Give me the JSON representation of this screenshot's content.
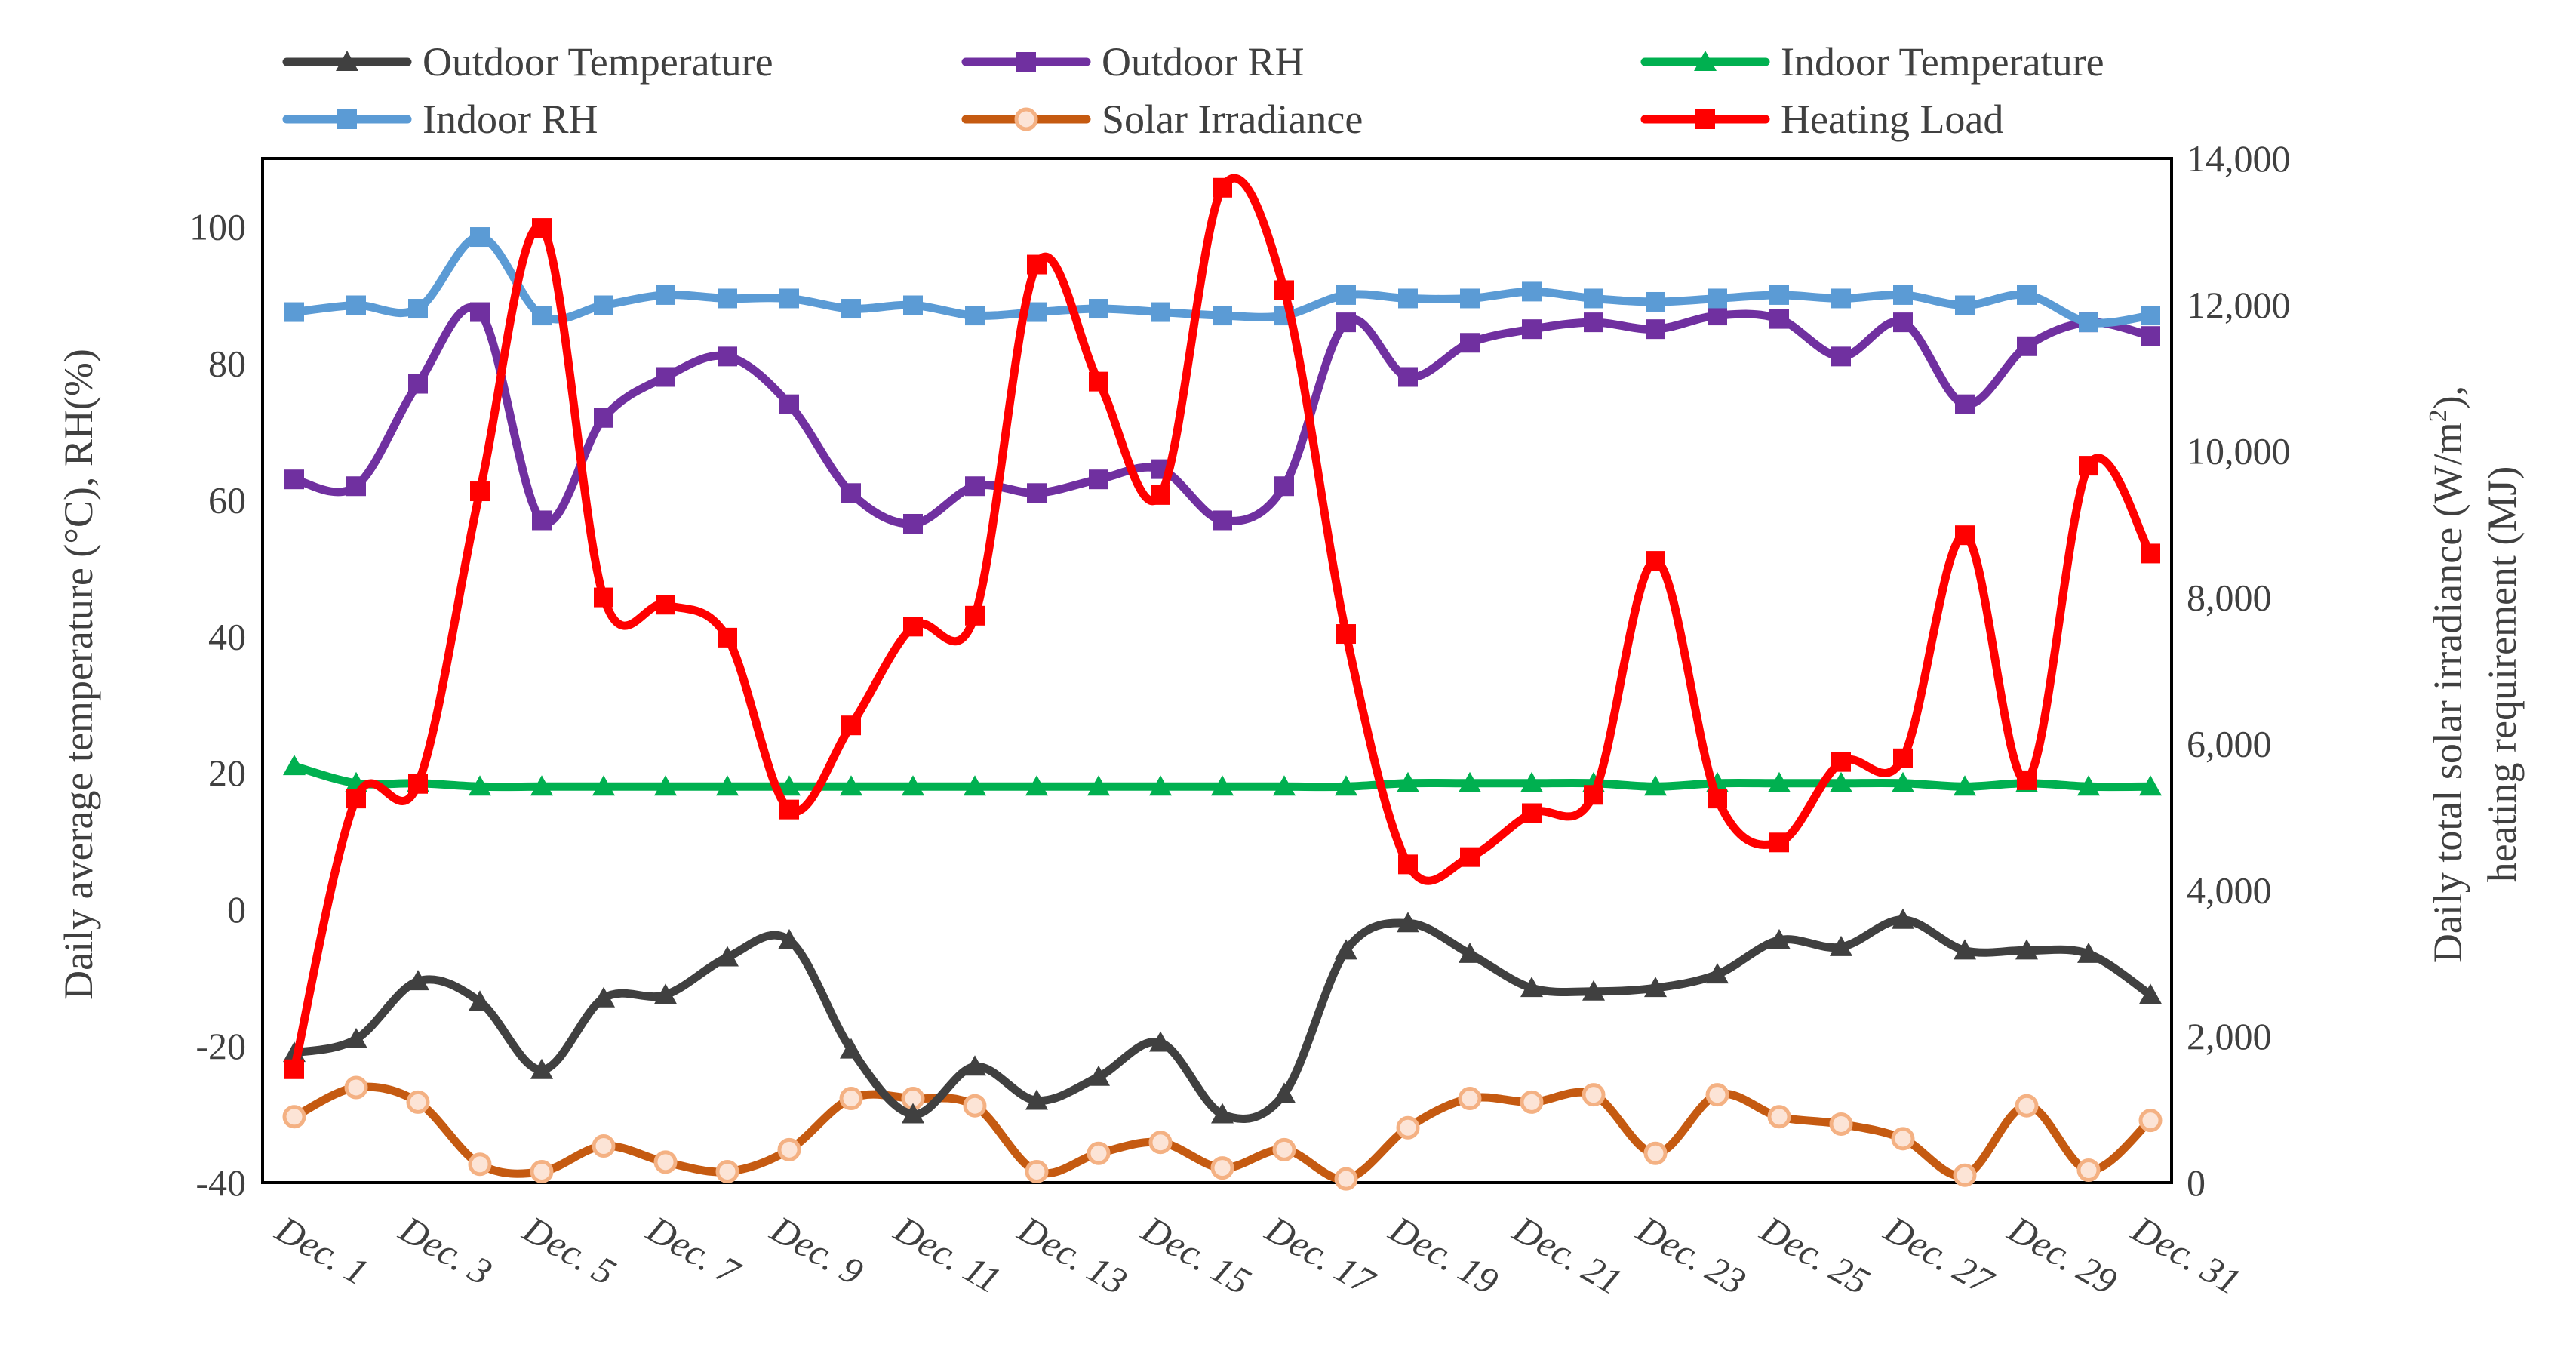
{
  "chart_data": {
    "type": "line",
    "title": "",
    "categories": [
      "Dec. 1",
      "Dec. 2",
      "Dec. 3",
      "Dec. 4",
      "Dec. 5",
      "Dec. 6",
      "Dec. 7",
      "Dec. 8",
      "Dec. 9",
      "Dec. 10",
      "Dec. 11",
      "Dec. 12",
      "Dec. 13",
      "Dec. 14",
      "Dec. 15",
      "Dec. 16",
      "Dec. 17",
      "Dec. 18",
      "Dec. 19",
      "Dec. 20",
      "Dec. 21",
      "Dec. 22",
      "Dec. 23",
      "Dec. 24",
      "Dec. 25",
      "Dec. 26",
      "Dec. 27",
      "Dec. 28",
      "Dec. 29",
      "Dec. 30",
      "Dec. 31"
    ],
    "x_tick_labels": [
      "Dec. 1",
      "Dec. 3",
      "Dec. 5",
      "Dec. 7",
      "Dec. 9",
      "Dec. 11",
      "Dec. 13",
      "Dec. 15",
      "Dec. 17",
      "Dec. 19",
      "Dec. 21",
      "Dec. 23",
      "Dec. 25",
      "Dec. 27",
      "Dec. 29",
      "Dec. 31"
    ],
    "left_axis": {
      "label": "Daily average temperature (°C), RH(%)",
      "ylim": [
        -40,
        110
      ],
      "ticks": [
        -40,
        -20,
        0,
        20,
        40,
        60,
        80,
        100
      ],
      "tick_labels": [
        "-40",
        "-20",
        "0",
        "20",
        "40",
        "60",
        "80",
        "100"
      ]
    },
    "right_axis": {
      "label_line1_pre": "Daily total solar irradiance (W/m",
      "label_line1_sup": "2",
      "label_line1_post": "),",
      "label_line2": "heating requirement (MJ)",
      "ylim": [
        0,
        14000
      ],
      "ticks": [
        0,
        2000,
        4000,
        6000,
        8000,
        10000,
        12000,
        14000
      ],
      "tick_labels": [
        "0",
        "2,000",
        "4,000",
        "6,000",
        "8,000",
        "10,000",
        "12,000",
        "14,000"
      ]
    },
    "series": [
      {
        "name": "Outdoor Temperature",
        "axis": "left",
        "color": "#404040",
        "marker": "triangle",
        "values": [
          -21,
          -19,
          -10.5,
          -13.5,
          -23.5,
          -13,
          -12.5,
          -7,
          -4.5,
          -20.5,
          -30,
          -23,
          -28,
          -24.5,
          -19.5,
          -30,
          -27,
          -6,
          -2,
          -6.5,
          -11.5,
          -12,
          -11.5,
          -9.5,
          -4.5,
          -5.5,
          -1.5,
          -6,
          -6,
          -6.5,
          -12.5
        ]
      },
      {
        "name": "Outdoor RH",
        "axis": "left",
        "color": "#7030A0",
        "marker": "square",
        "values": [
          63,
          62,
          77,
          87.5,
          57,
          72,
          78,
          81,
          74,
          61,
          56.5,
          62,
          61,
          63,
          64.5,
          57,
          62,
          86,
          78,
          83,
          85,
          86,
          85,
          87,
          86.5,
          81,
          86,
          74,
          82.5,
          86,
          84
        ]
      },
      {
        "name": "Indoor Temperature",
        "axis": "left",
        "color": "#00B050",
        "marker": "triangle",
        "values": [
          21,
          18.5,
          18.5,
          18,
          18,
          18,
          18,
          18,
          18,
          18,
          18,
          18,
          18,
          18,
          18,
          18,
          18,
          18,
          18.5,
          18.5,
          18.5,
          18.5,
          18,
          18.5,
          18.5,
          18.5,
          18.5,
          18,
          18.5,
          18,
          18
        ]
      },
      {
        "name": "Indoor RH",
        "axis": "left",
        "color": "#5B9BD5",
        "marker": "square",
        "values": [
          87.5,
          88.5,
          88,
          98.5,
          87,
          88.5,
          90,
          89.5,
          89.5,
          88,
          88.5,
          87,
          87.5,
          88,
          87.5,
          87,
          87,
          90,
          89.5,
          89.5,
          90.5,
          89.5,
          89,
          89.5,
          90,
          89.5,
          90,
          88.5,
          90,
          86,
          87
        ]
      },
      {
        "name": "Solar Irradiance",
        "axis": "right",
        "color": "#C55A11",
        "marker": "circle",
        "values": [
          900,
          1300,
          1100,
          250,
          150,
          500,
          280,
          150,
          450,
          1150,
          1150,
          1050,
          150,
          400,
          550,
          200,
          450,
          50,
          750,
          1150,
          1100,
          1200,
          400,
          1200,
          900,
          800,
          600,
          100,
          1050,
          170,
          850
        ]
      },
      {
        "name": "Heating Load",
        "axis": "right",
        "color": "#FF0000",
        "marker": "square",
        "values": [
          1550,
          5250,
          5450,
          9450,
          13050,
          8000,
          7900,
          7450,
          5100,
          6250,
          7600,
          7750,
          12550,
          10950,
          9400,
          13600,
          12200,
          7500,
          4350,
          4450,
          5050,
          5300,
          8500,
          5250,
          4650,
          5750,
          5800,
          8850,
          5500,
          9800,
          8600
        ]
      }
    ]
  }
}
